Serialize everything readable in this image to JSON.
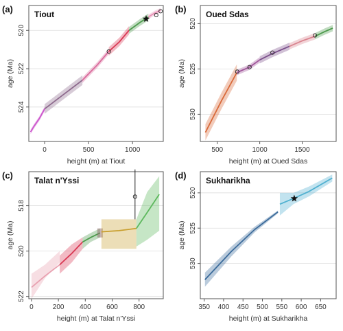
{
  "figure": {
    "panels": [
      "(a)",
      "(b)",
      "(c)",
      "(d)"
    ]
  },
  "chart_data": [
    {
      "panel_label": "(a)",
      "type": "line",
      "title": "Tiout",
      "xlabel": "height (m) at Tiout",
      "ylabel": "age (Ma)",
      "xlim": [
        -180,
        1350
      ],
      "ylim": [
        525.8,
        518.7
      ],
      "xticks": [
        0,
        500,
        1000
      ],
      "yticks": [
        520,
        522,
        524
      ],
      "series": [
        {
          "color": "#cc55cc",
          "x": [
            -160,
            -120,
            -60,
            0
          ],
          "y": [
            525.3,
            525.0,
            524.6,
            524.1
          ],
          "band_half_width": 0.12
        },
        {
          "color": "#8d6a8d",
          "x": [
            0,
            200,
            430
          ],
          "y": [
            524.1,
            523.4,
            522.6
          ],
          "band_half_width": 0.25
        },
        {
          "color": "#d96a9b",
          "x": [
            430,
            600,
            730
          ],
          "y": [
            522.6,
            521.8,
            521.1
          ],
          "band_half_width": 0.15
        },
        {
          "color": "#d93a55",
          "x": [
            730,
            850,
            960
          ],
          "y": [
            521.1,
            520.6,
            520.0
          ],
          "band_half_width": 0.22
        },
        {
          "color": "#4c9a4c",
          "x": [
            960,
            1080,
            1180
          ],
          "y": [
            520.0,
            519.6,
            519.3
          ],
          "band_half_width": 0.18
        },
        {
          "color": "#e890b5",
          "x": [
            1180,
            1250,
            1320
          ],
          "y": [
            519.3,
            519.1,
            518.95
          ],
          "band_half_width": 0.12
        }
      ],
      "points": [
        {
          "x": 730,
          "y": 521.1,
          "marker": "circle"
        },
        {
          "x": 1270,
          "y": 519.2,
          "marker": "circle"
        },
        {
          "x": 1320,
          "y": 519.0,
          "marker": "circle"
        },
        {
          "x": 1155,
          "y": 519.4,
          "marker": "star"
        }
      ]
    },
    {
      "panel_label": "(b)",
      "type": "line",
      "title": "Oued Sdas",
      "xlabel": "height (m) at Oued Sdas",
      "ylabel": "age (Ma)",
      "xlim": [
        300,
        1900
      ],
      "ylim": [
        533.0,
        518.0
      ],
      "xticks": [
        500,
        1000,
        1500
      ],
      "yticks": [
        520,
        525,
        530
      ],
      "series": [
        {
          "color": "#d96a3a",
          "x": [
            360,
            550,
            730
          ],
          "y": [
            532.0,
            528.5,
            525.4
          ],
          "band_half_width": 0.9
        },
        {
          "color": "#a0559a",
          "x": [
            730,
            880,
            1000
          ],
          "y": [
            525.4,
            524.8,
            524.0
          ],
          "band_half_width": 0.3
        },
        {
          "color": "#7a4e8a",
          "x": [
            1000,
            1150,
            1350
          ],
          "y": [
            524.0,
            523.3,
            522.5
          ],
          "band_half_width": 0.4
        },
        {
          "color": "#d9848f",
          "x": [
            1350,
            1500,
            1650
          ],
          "y": [
            522.5,
            521.9,
            521.4
          ],
          "band_half_width": 0.35
        },
        {
          "color": "#4c9a4c",
          "x": [
            1650,
            1760,
            1860
          ],
          "y": [
            521.4,
            520.9,
            520.5
          ],
          "band_half_width": 0.35
        }
      ],
      "points": [
        {
          "x": 735,
          "y": 525.3,
          "marker": "circle"
        },
        {
          "x": 880,
          "y": 524.8,
          "marker": "circle"
        },
        {
          "x": 1150,
          "y": 523.2,
          "marker": "circle"
        },
        {
          "x": 1650,
          "y": 521.3,
          "marker": "circle"
        }
      ]
    },
    {
      "panel_label": "(c)",
      "type": "line",
      "title": "Talat n'Yssi",
      "xlabel": "height (m) at Talat n'Yssi",
      "ylabel": "age (Ma)",
      "xlim": [
        -20,
        980
      ],
      "ylim": [
        522.1,
        516.5
      ],
      "xticks": [
        0,
        200,
        400,
        600,
        800
      ],
      "yticks": [
        518,
        520,
        522
      ],
      "series": [
        {
          "color": "#e8a0b0",
          "x": [
            0,
            100,
            210
          ],
          "y": [
            521.6,
            521.1,
            520.6
          ],
          "band_lower": [
            522.1,
            521.2,
            520.5
          ],
          "band_upper": [
            521.0,
            520.6,
            520.0
          ]
        },
        {
          "color": "#d93a55",
          "x": [
            210,
            300,
            380
          ],
          "y": [
            520.6,
            520.1,
            519.6
          ],
          "band_lower": [
            521.0,
            520.5,
            519.9
          ],
          "band_upper": [
            520.2,
            519.7,
            519.4
          ]
        },
        {
          "color": "#4c9a4c",
          "x": [
            380,
            440,
            510
          ],
          "y": [
            519.6,
            519.4,
            519.2
          ],
          "band_lower": [
            519.9,
            519.6,
            519.4
          ],
          "band_upper": [
            519.4,
            519.2,
            519.0
          ]
        },
        {
          "color": "#8d6a6a",
          "x": [
            510
          ],
          "y": [
            519.2
          ],
          "band_lower": [
            519.4
          ],
          "band_upper": [
            519.0
          ]
        },
        {
          "color": "#c9a030",
          "x": [
            520,
            650,
            780
          ],
          "y": [
            519.15,
            519.1,
            519.0
          ],
          "band_lower": [
            519.9,
            519.9,
            519.9
          ],
          "band_upper": [
            518.6,
            518.6,
            518.6
          ]
        },
        {
          "color": "#5cb85c",
          "x": [
            780,
            860,
            950
          ],
          "y": [
            519.0,
            518.3,
            517.5
          ],
          "band_lower": [
            519.8,
            519.5,
            519.1
          ],
          "band_upper": [
            518.6,
            517.4,
            516.7
          ]
        }
      ],
      "points": [
        {
          "x": 770,
          "y": 517.6,
          "marker": "circle",
          "error_low": 518.6,
          "error_high": 516.4
        }
      ]
    },
    {
      "panel_label": "(d)",
      "type": "line",
      "title": "Sukharikha",
      "xlabel": "height (m) at Sukharikha",
      "ylabel": "age (Ma)",
      "xlim": [
        340,
        690
      ],
      "ylim": [
        535.0,
        517.0
      ],
      "xticks": [
        350,
        400,
        450,
        500,
        550,
        600,
        650
      ],
      "yticks": [
        520,
        525,
        530
      ],
      "series": [
        {
          "color": "#3a6a9a",
          "x": [
            352,
            420,
            480,
            540
          ],
          "y": [
            532.3,
            528.3,
            525.2,
            522.7
          ],
          "band_lower": [
            533.3,
            529.0,
            525.6,
            522.9
          ],
          "band_upper": [
            531.3,
            527.6,
            524.8,
            522.5
          ]
        },
        {
          "color": "#4fb0d0",
          "x": [
            545,
            580,
            620,
            680
          ],
          "y": [
            521.6,
            520.8,
            519.8,
            517.9
          ],
          "band_lower": [
            523.2,
            521.6,
            520.5,
            518.4
          ],
          "band_upper": [
            520.0,
            520.0,
            519.1,
            517.4
          ]
        }
      ],
      "points": [
        {
          "x": 582,
          "y": 520.8,
          "marker": "star"
        }
      ]
    }
  ]
}
